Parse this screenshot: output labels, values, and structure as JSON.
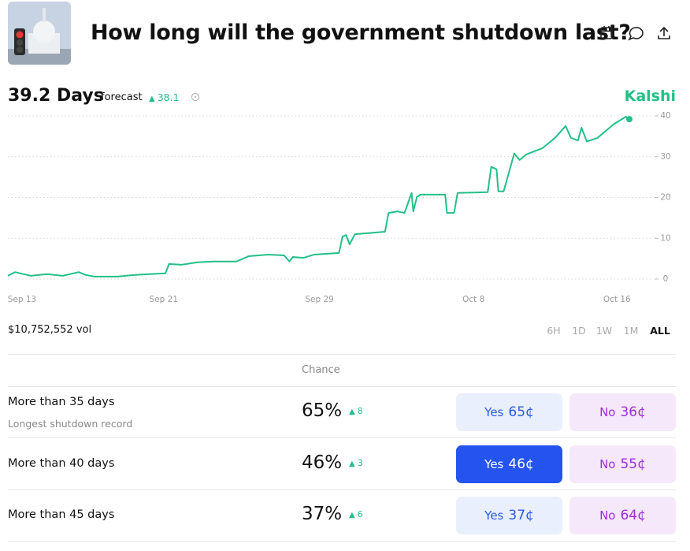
{
  "header": {
    "title": "How long will the government shutdown last?"
  },
  "forecast": {
    "value": "39.2 Days",
    "label": "forecast",
    "change": "38.1"
  },
  "brand": "Kalshi",
  "chart_data": {
    "type": "line",
    "x": [
      -0.8,
      -0.4,
      0.1,
      0.5,
      1.4,
      2.3,
      3.2,
      3.6,
      4.1,
      5.4,
      6.3,
      7.2,
      8.1,
      8.3,
      9.0,
      9.9,
      10.8,
      12.1,
      12.8,
      13.9,
      14.8,
      15.1,
      15.3,
      15.9,
      16.5,
      17.9,
      18.1,
      18.3,
      18.5,
      18.8,
      20.5,
      20.7,
      21.2,
      21.6,
      22.0,
      22.1,
      22.3,
      22.5,
      23.9,
      24.0,
      24.4,
      24.6,
      26.3,
      26.5,
      26.8,
      26.9,
      27.2,
      27.8,
      28.1,
      28.5,
      29.4,
      30.1,
      30.7,
      31.0,
      31.4,
      31.6,
      31.9,
      32.5,
      33.4,
      34.1,
      34.3
    ],
    "series": [
      {
        "name": "Forecast",
        "color": "#22c087",
        "values": [
          0.8,
          1.7,
          1.2,
          0.8,
          1.2,
          0.8,
          1.7,
          1.0,
          0.6,
          0.6,
          1.0,
          1.2,
          1.4,
          3.7,
          3.5,
          4.1,
          4.3,
          4.3,
          5.6,
          6.0,
          5.8,
          4.3,
          5.4,
          5.2,
          6.0,
          6.4,
          10.4,
          10.8,
          8.5,
          11.0,
          11.6,
          16.2,
          16.6,
          16.2,
          21.1,
          16.6,
          20.1,
          20.7,
          20.7,
          16.2,
          16.2,
          21.1,
          21.3,
          27.5,
          26.9,
          21.5,
          21.5,
          30.8,
          29.2,
          30.6,
          32.1,
          34.6,
          37.5,
          34.6,
          34.0,
          37.1,
          33.7,
          34.6,
          37.9,
          39.8,
          39.2
        ]
      }
    ],
    "xlim": [
      -0.8,
      34.3
    ],
    "xticks": [
      {
        "value": 0,
        "label": "Sep 13"
      },
      {
        "value": 8.0,
        "label": "Sep 21"
      },
      {
        "value": 16.8,
        "label": "Sep 29"
      },
      {
        "value": 25.5,
        "label": "Oct 8"
      },
      {
        "value": 33.6,
        "label": "Oct 16"
      }
    ],
    "ylim": [
      0,
      40
    ],
    "yticks": [
      0,
      10,
      20,
      30,
      40
    ],
    "grid": true
  },
  "volume": "$10,752,552 vol",
  "ranges": [
    "6H",
    "1D",
    "1W",
    "1M",
    "ALL"
  ],
  "table": {
    "header": "Chance",
    "rows": [
      {
        "label": "More than 35 days",
        "note": "Longest shutdown record",
        "chance": "65%",
        "change": "8",
        "yes": "Yes",
        "yes_price": "65¢",
        "no": "No",
        "no_price": "36¢"
      },
      {
        "label": "More than 40 days",
        "chance": "46%",
        "change": "3",
        "yes": "Yes",
        "yes_price": "46¢",
        "no": "No",
        "no_price": "55¢"
      },
      {
        "label": "More than 45 days",
        "chance": "37%",
        "change": "6",
        "yes": "Yes",
        "yes_price": "37¢",
        "no": "No",
        "no_price": "64¢"
      }
    ]
  }
}
